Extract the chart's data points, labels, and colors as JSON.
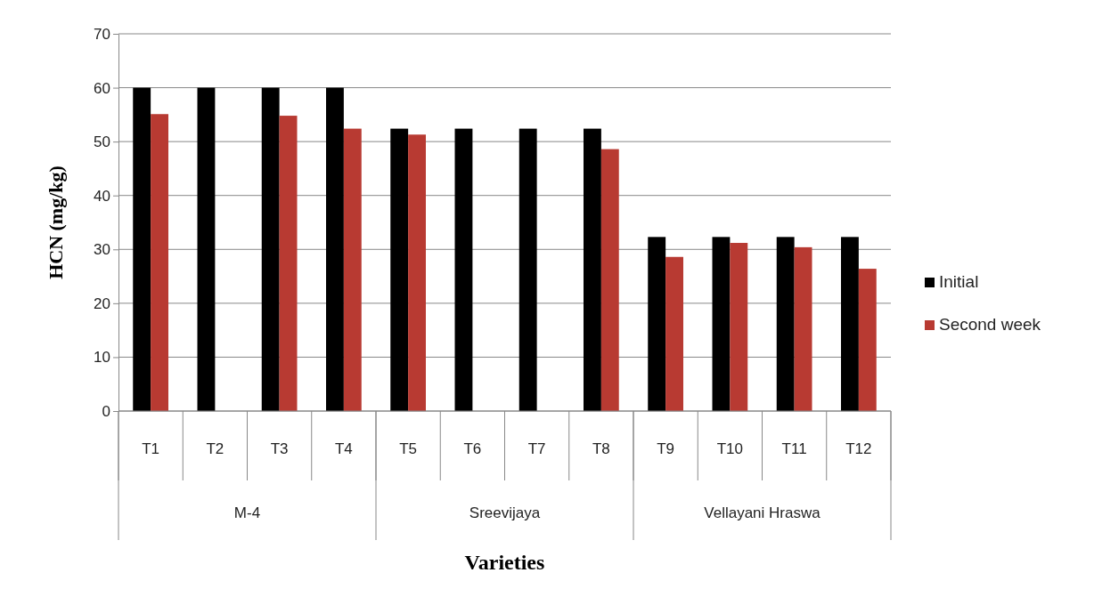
{
  "chart_data": {
    "type": "bar",
    "xlabel": "Varieties",
    "ylabel": "HCN (mg/kg)",
    "categories": [
      "T1",
      "T2",
      "T3",
      "T4",
      "T5",
      "T6",
      "T7",
      "T8",
      "T9",
      "T10",
      "T11",
      "T12"
    ],
    "series": [
      {
        "name": "Initial",
        "color": "#000000",
        "values": [
          60,
          60,
          60,
          60,
          52.4,
          52.4,
          52.4,
          52.4,
          32.3,
          32.3,
          32.3,
          32.3
        ]
      },
      {
        "name": "Second week",
        "color": "#b83a32",
        "values": [
          55.1,
          null,
          54.8,
          52.4,
          51.3,
          null,
          null,
          48.6,
          28.6,
          31.2,
          30.4,
          26.4
        ]
      }
    ],
    "ylim": [
      0,
      70
    ],
    "yticks": [
      0,
      10,
      20,
      30,
      40,
      50,
      60,
      70
    ],
    "grid": "y",
    "legend": "right",
    "annotations": [
      "M-4",
      "Sreevijaya",
      "Vellayani Hraswa"
    ]
  }
}
